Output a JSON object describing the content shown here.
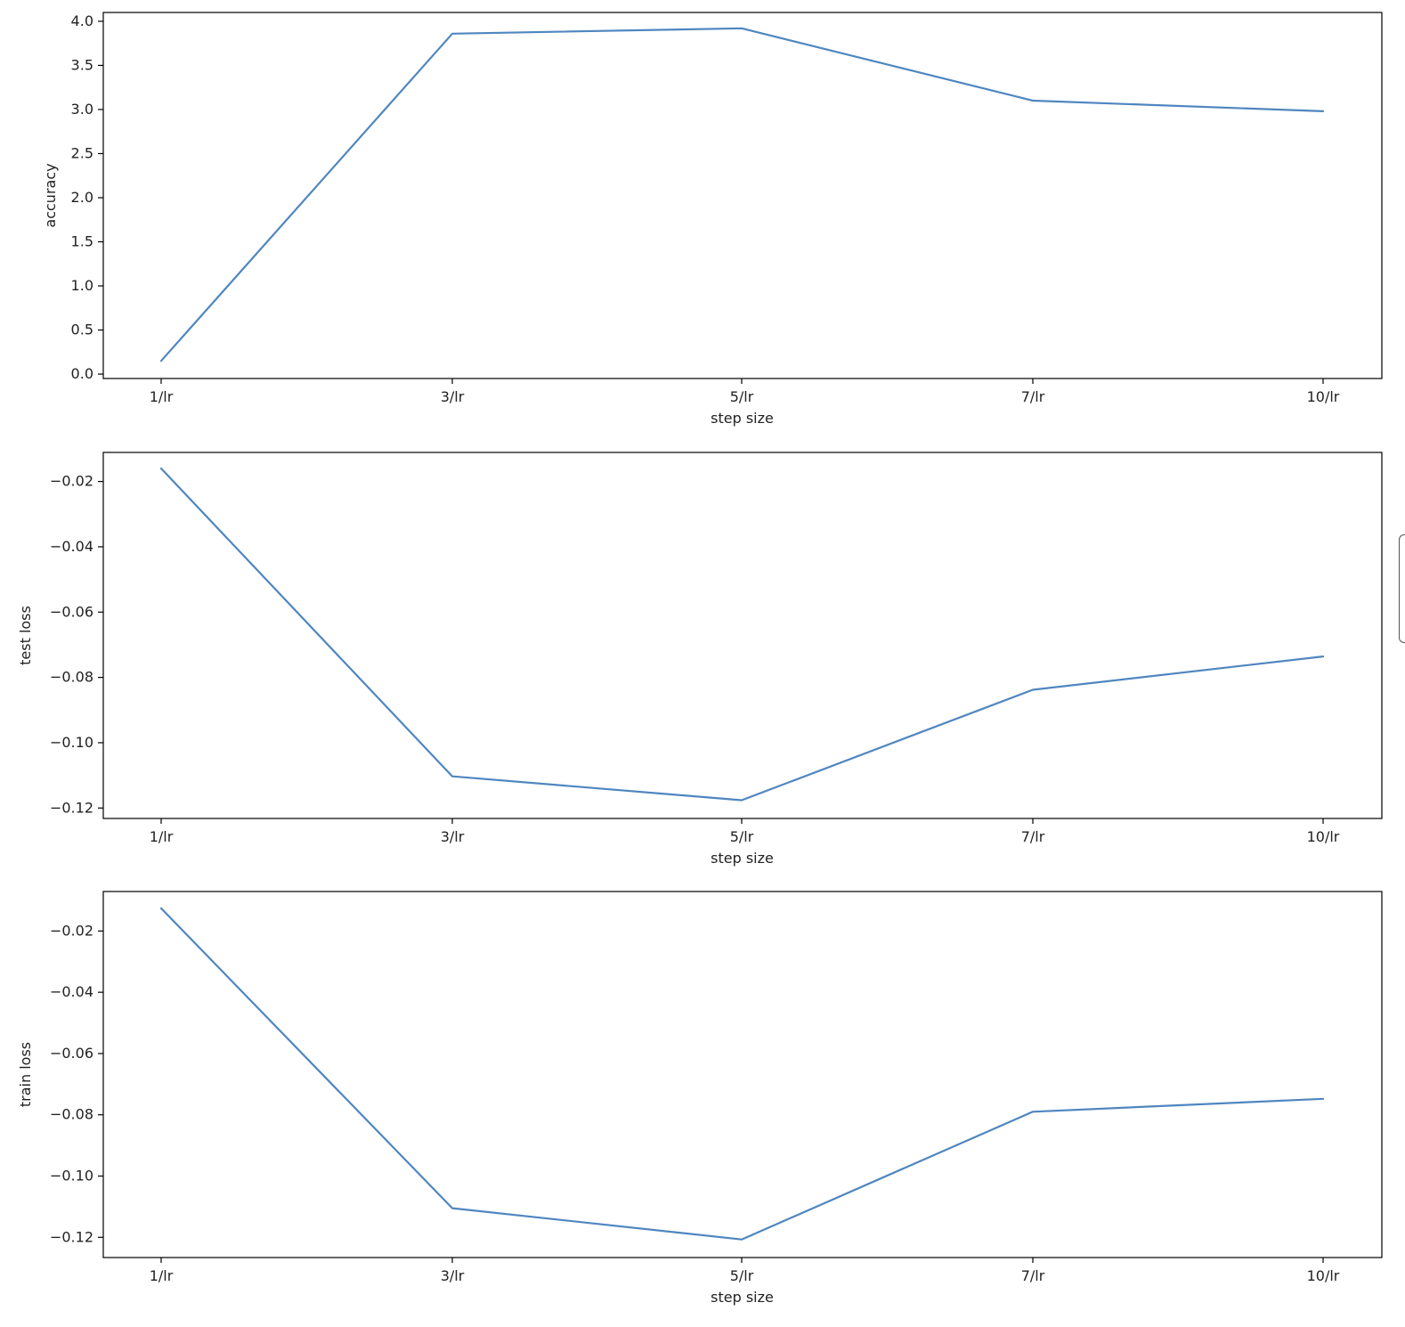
{
  "colors": {
    "line": "#4f86c0",
    "frame": "#000000",
    "text": "#222222"
  },
  "chart_data": [
    {
      "type": "line",
      "title": "",
      "xlabel": "step size",
      "ylabel": "accuracy",
      "categories": [
        "1/lr",
        "3/lr",
        "5/lr",
        "7/lr",
        "10/lr"
      ],
      "series": [
        {
          "values": [
            0.15,
            3.86,
            3.92,
            3.1,
            2.98
          ]
        }
      ],
      "ylim": [
        -0.05,
        4.1
      ],
      "yticks": [
        0.0,
        0.5,
        1.0,
        1.5,
        2.0,
        2.5,
        3.0,
        3.5,
        4.0
      ],
      "yticklabels": [
        "0.0",
        "0.5",
        "1.0",
        "1.5",
        "2.0",
        "2.5",
        "3.0",
        "3.5",
        "4.0"
      ],
      "grid": false,
      "legend": "none"
    },
    {
      "type": "line",
      "title": "",
      "xlabel": "step size",
      "ylabel": "test loss",
      "categories": [
        "1/lr",
        "3/lr",
        "5/lr",
        "7/lr",
        "10/lr"
      ],
      "series": [
        {
          "values": [
            -0.016,
            -0.1103,
            -0.1176,
            -0.0838,
            -0.0736
          ]
        }
      ],
      "ylim": [
        -0.1232,
        -0.0111
      ],
      "yticks": [
        -0.02,
        -0.04,
        -0.06,
        -0.08,
        -0.1,
        -0.12
      ],
      "yticklabels": [
        "−0.02",
        "−0.04",
        "−0.06",
        "−0.08",
        "−0.10",
        "−0.12"
      ],
      "grid": false,
      "legend": "none"
    },
    {
      "type": "line",
      "title": "",
      "xlabel": "step size",
      "ylabel": "train loss",
      "categories": [
        "1/lr",
        "3/lr",
        "5/lr",
        "7/lr",
        "10/lr"
      ],
      "series": [
        {
          "values": [
            -0.0126,
            -0.1105,
            -0.1207,
            -0.079,
            -0.0748
          ]
        }
      ],
      "ylim": [
        -0.1266,
        -0.0071
      ],
      "yticks": [
        -0.02,
        -0.04,
        -0.06,
        -0.08,
        -0.1,
        -0.12
      ],
      "yticklabels": [
        "−0.02",
        "−0.04",
        "−0.06",
        "−0.08",
        "−0.10",
        "−0.12"
      ],
      "grid": false,
      "legend": "none"
    }
  ]
}
